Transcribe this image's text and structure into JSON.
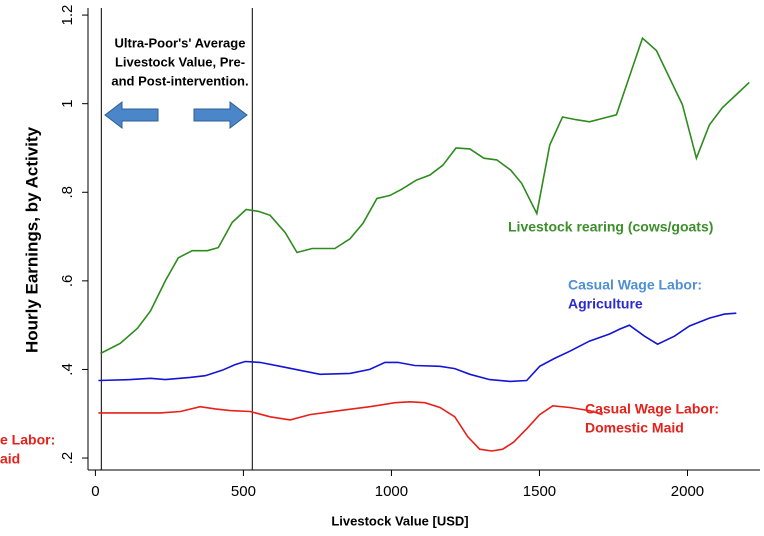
{
  "chart_data": {
    "type": "line",
    "annotation": [
      "Ultra-Poor's' Average",
      "Livestock Value, Pre-",
      "and Post-intervention."
    ],
    "xlabel": "Livestock Value [USD]",
    "ylabel": "Hourly Earnings, by Activity",
    "xlim": [
      -25,
      2245
    ],
    "ylim": [
      0.173,
      1.216
    ],
    "xticks": [
      0,
      500,
      1000,
      1500,
      2000
    ],
    "yticks": [
      {
        "value": 0.2,
        "label": ".2"
      },
      {
        "value": 0.4,
        "label": ".4"
      },
      {
        "value": 0.6,
        "label": ".6"
      },
      {
        "value": 0.8,
        "label": ".8"
      },
      1,
      1.2
    ],
    "vlines": [
      20,
      530
    ],
    "clipped_label": [
      "e Labor:",
      "aid"
    ],
    "series": [
      {
        "label_lines": [
          "Livestock rearing (cows/goats)"
        ],
        "label_colors": [
          "#3d8f2b"
        ],
        "color": "#2e8b1e",
        "x": [
          17,
          84,
          142,
          186,
          236,
          280,
          327,
          378,
          415,
          462,
          509,
          550,
          590,
          641,
          681,
          732,
          809,
          860,
          904,
          951,
          995,
          1035,
          1083,
          1130,
          1174,
          1218,
          1265,
          1312,
          1356,
          1403,
          1440,
          1491,
          1535,
          1578,
          1622,
          1669,
          1720,
          1760,
          1848,
          1895,
          1983,
          2030,
          2074,
          2118,
          2169,
          2209
        ],
        "values": [
          0.436,
          0.459,
          0.493,
          0.532,
          0.6,
          0.652,
          0.668,
          0.668,
          0.675,
          0.732,
          0.761,
          0.757,
          0.748,
          0.709,
          0.664,
          0.673,
          0.673,
          0.695,
          0.73,
          0.786,
          0.793,
          0.807,
          0.827,
          0.839,
          0.861,
          0.9,
          0.898,
          0.877,
          0.873,
          0.85,
          0.82,
          0.752,
          0.907,
          0.97,
          0.964,
          0.959,
          0.968,
          0.975,
          1.148,
          1.12,
          0.998,
          0.877,
          0.952,
          0.991,
          1.023,
          1.048
        ]
      },
      {
        "label_lines": [
          "Casual Wage Labor:",
          "Agriculture"
        ],
        "label_colors": [
          "#4f8fd6",
          "#2a2ad0"
        ],
        "color": "#1414d8",
        "x": [
          10,
          118,
          186,
          236,
          320,
          371,
          428,
          472,
          506,
          556,
          624,
          691,
          759,
          860,
          927,
          978,
          1022,
          1079,
          1164,
          1214,
          1265,
          1332,
          1400,
          1457,
          1501,
          1551,
          1602,
          1669,
          1737,
          1771,
          1804,
          1855,
          1899,
          1956,
          2007,
          2074,
          2125,
          2165
        ],
        "values": [
          0.375,
          0.377,
          0.38,
          0.377,
          0.382,
          0.386,
          0.398,
          0.411,
          0.418,
          0.416,
          0.407,
          0.398,
          0.389,
          0.391,
          0.4,
          0.416,
          0.416,
          0.409,
          0.407,
          0.402,
          0.389,
          0.377,
          0.373,
          0.375,
          0.407,
          0.425,
          0.441,
          0.464,
          0.48,
          0.491,
          0.5,
          0.475,
          0.457,
          0.475,
          0.498,
          0.516,
          0.525,
          0.527
        ]
      },
      {
        "label_lines": [
          "Casual Wage Labor:",
          "Domestic Maid"
        ],
        "label_colors": [
          "#e8201a",
          "#e8201a"
        ],
        "color": "#e8201a",
        "x": [
          10,
          118,
          219,
          287,
          354,
          405,
          455,
          523,
          590,
          658,
          725,
          826,
          927,
          1012,
          1062,
          1113,
          1164,
          1214,
          1258,
          1298,
          1339,
          1376,
          1413,
          1457,
          1501,
          1545,
          1602,
          1669,
          1713
        ],
        "values": [
          0.302,
          0.302,
          0.302,
          0.305,
          0.316,
          0.311,
          0.307,
          0.305,
          0.293,
          0.286,
          0.298,
          0.307,
          0.316,
          0.325,
          0.327,
          0.325,
          0.314,
          0.293,
          0.248,
          0.22,
          0.216,
          0.22,
          0.236,
          0.266,
          0.298,
          0.318,
          0.314,
          0.307,
          0.298
        ]
      }
    ]
  }
}
